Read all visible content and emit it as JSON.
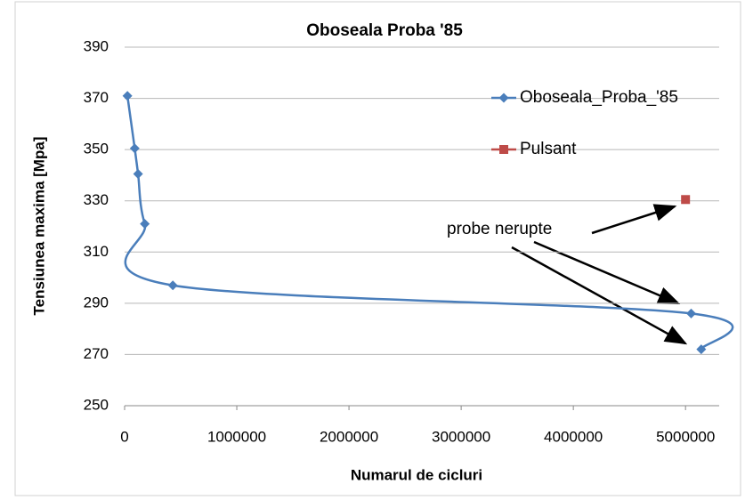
{
  "chart_data": {
    "type": "scatter",
    "title": "Oboseala Proba '85",
    "xlabel": "Numarul de cicluri",
    "ylabel": "Tensiunea maxima [Mpa]",
    "xlim": [
      0,
      5300000
    ],
    "xticks": [
      0,
      1000000,
      2000000,
      3000000,
      4000000,
      5000000
    ],
    "ylim": [
      250,
      390
    ],
    "yticks": [
      250,
      270,
      290,
      310,
      330,
      350,
      370,
      390
    ],
    "grid": true,
    "legend": "right",
    "series": [
      {
        "name": "Oboseala_Proba_'85",
        "color": "#4a7ebb",
        "smooth": true,
        "x": [
          25000,
          90000,
          120000,
          180000,
          430000,
          5050000,
          5140000
        ],
        "values": [
          371,
          350.5,
          340.5,
          321,
          297,
          286,
          272
        ]
      },
      {
        "name": "Pulsant",
        "color": "#be4b48",
        "smooth": false,
        "x": [
          5000000
        ],
        "values": [
          330.5
        ]
      }
    ],
    "annotations": [
      "probe nerupte"
    ]
  }
}
